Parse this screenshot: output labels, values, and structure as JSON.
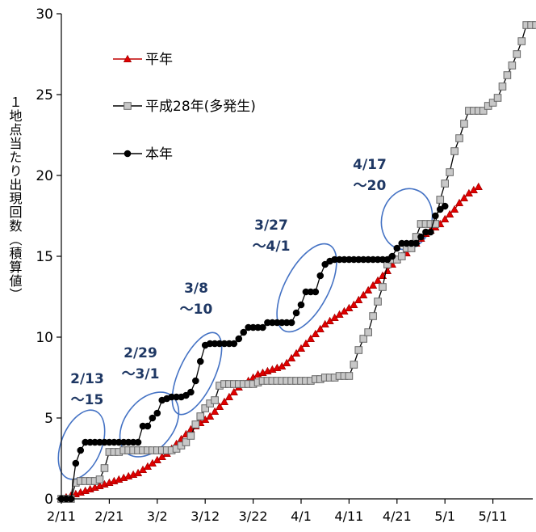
{
  "chart_data": {
    "type": "line",
    "xlabel": "",
    "ylabel": "１地点当たり出現回数（積算値）",
    "ylim": [
      0,
      30
    ],
    "yticks": [
      "0",
      "5",
      "10",
      "15",
      "20",
      "25",
      "30"
    ],
    "xticks": [
      "2/11",
      "2/21",
      "3/2",
      "3/12",
      "3/22",
      "4/1",
      "4/11",
      "4/21",
      "5/1",
      "5/11"
    ],
    "grid": false,
    "legend_position": "top-left",
    "legend": [
      "平年",
      "平成28年(多発生)",
      "本年"
    ],
    "series": [
      {
        "name": "平年",
        "color": "#e00000",
        "marker": "triangle",
        "points": [
          [
            0,
            0
          ],
          [
            1,
            0.1
          ],
          [
            2,
            0.2
          ],
          [
            3,
            0.3
          ],
          [
            4,
            0.4
          ],
          [
            5,
            0.5
          ],
          [
            6,
            0.6
          ],
          [
            7,
            0.7
          ],
          [
            8,
            0.8
          ],
          [
            9,
            0.9
          ],
          [
            10,
            1.0
          ],
          [
            11,
            1.1
          ],
          [
            12,
            1.2
          ],
          [
            13,
            1.3
          ],
          [
            14,
            1.4
          ],
          [
            15,
            1.5
          ],
          [
            16,
            1.6
          ],
          [
            17,
            1.8
          ],
          [
            18,
            2.0
          ],
          [
            19,
            2.2
          ],
          [
            20,
            2.4
          ],
          [
            21,
            2.6
          ],
          [
            22,
            2.8
          ],
          [
            23,
            3.1
          ],
          [
            24,
            3.4
          ],
          [
            25,
            3.7
          ],
          [
            26,
            4.0
          ],
          [
            27,
            4.3
          ],
          [
            28,
            4.5
          ],
          [
            29,
            4.7
          ],
          [
            30,
            4.9
          ],
          [
            31,
            5.1
          ],
          [
            32,
            5.4
          ],
          [
            33,
            5.7
          ],
          [
            34,
            6.0
          ],
          [
            35,
            6.3
          ],
          [
            36,
            6.6
          ],
          [
            37,
            6.9
          ],
          [
            38,
            7.1
          ],
          [
            39,
            7.3
          ],
          [
            40,
            7.5
          ],
          [
            41,
            7.7
          ],
          [
            42,
            7.8
          ],
          [
            43,
            7.9
          ],
          [
            44,
            8.0
          ],
          [
            45,
            8.1
          ],
          [
            46,
            8.2
          ],
          [
            47,
            8.4
          ],
          [
            48,
            8.7
          ],
          [
            49,
            9.0
          ],
          [
            50,
            9.3
          ],
          [
            51,
            9.6
          ],
          [
            52,
            9.9
          ],
          [
            53,
            10.2
          ],
          [
            54,
            10.5
          ],
          [
            55,
            10.8
          ],
          [
            56,
            11.0
          ],
          [
            57,
            11.2
          ],
          [
            58,
            11.4
          ],
          [
            59,
            11.6
          ],
          [
            60,
            11.8
          ],
          [
            61,
            12.0
          ],
          [
            62,
            12.3
          ],
          [
            63,
            12.6
          ],
          [
            64,
            12.9
          ],
          [
            65,
            13.2
          ],
          [
            66,
            13.5
          ],
          [
            67,
            13.8
          ],
          [
            68,
            14.1
          ],
          [
            69,
            14.5
          ],
          [
            70,
            14.8
          ],
          [
            71,
            15.0
          ],
          [
            72,
            15.2
          ],
          [
            73,
            15.5
          ],
          [
            74,
            15.8
          ],
          [
            75,
            16.1
          ],
          [
            76,
            16.4
          ],
          [
            77,
            16.6
          ],
          [
            78,
            16.8
          ],
          [
            79,
            17.0
          ],
          [
            80,
            17.3
          ],
          [
            81,
            17.6
          ],
          [
            82,
            17.9
          ],
          [
            83,
            18.3
          ],
          [
            84,
            18.6
          ],
          [
            85,
            18.9
          ],
          [
            86,
            19.1
          ],
          [
            87,
            19.3
          ]
        ]
      },
      {
        "name": "平成28年(多発生)",
        "color": "#888888",
        "marker": "square",
        "points": [
          [
            0,
            0
          ],
          [
            1,
            0
          ],
          [
            2,
            0
          ],
          [
            3,
            1
          ],
          [
            4,
            1.1
          ],
          [
            5,
            1.1
          ],
          [
            6,
            1.1
          ],
          [
            7,
            1.1
          ],
          [
            8,
            1.2
          ],
          [
            9,
            1.9
          ],
          [
            10,
            2.9
          ],
          [
            11,
            2.9
          ],
          [
            12,
            2.9
          ],
          [
            13,
            3.0
          ],
          [
            14,
            3.0
          ],
          [
            15,
            3.0
          ],
          [
            16,
            3.0
          ],
          [
            17,
            3.0
          ],
          [
            18,
            3.0
          ],
          [
            19,
            3.0
          ],
          [
            20,
            3.0
          ],
          [
            21,
            3.0
          ],
          [
            22,
            3.0
          ],
          [
            23,
            3.0
          ],
          [
            24,
            3.1
          ],
          [
            25,
            3.3
          ],
          [
            26,
            3.5
          ],
          [
            27,
            3.9
          ],
          [
            28,
            4.6
          ],
          [
            29,
            5.1
          ],
          [
            30,
            5.6
          ],
          [
            31,
            5.9
          ],
          [
            32,
            6.1
          ],
          [
            33,
            7.0
          ],
          [
            34,
            7.1
          ],
          [
            35,
            7.1
          ],
          [
            36,
            7.1
          ],
          [
            37,
            7.1
          ],
          [
            38,
            7.1
          ],
          [
            39,
            7.1
          ],
          [
            40,
            7.1
          ],
          [
            41,
            7.2
          ],
          [
            42,
            7.3
          ],
          [
            43,
            7.3
          ],
          [
            44,
            7.3
          ],
          [
            45,
            7.3
          ],
          [
            46,
            7.3
          ],
          [
            47,
            7.3
          ],
          [
            48,
            7.3
          ],
          [
            49,
            7.3
          ],
          [
            50,
            7.3
          ],
          [
            51,
            7.3
          ],
          [
            52,
            7.3
          ],
          [
            53,
            7.4
          ],
          [
            54,
            7.4
          ],
          [
            55,
            7.5
          ],
          [
            56,
            7.5
          ],
          [
            57,
            7.5
          ],
          [
            58,
            7.6
          ],
          [
            59,
            7.6
          ],
          [
            60,
            7.6
          ],
          [
            61,
            8.3
          ],
          [
            62,
            9.2
          ],
          [
            63,
            9.9
          ],
          [
            64,
            10.3
          ],
          [
            65,
            11.3
          ],
          [
            66,
            12.2
          ],
          [
            67,
            13.1
          ],
          [
            68,
            14.5
          ],
          [
            69,
            14.8
          ],
          [
            70,
            14.8
          ],
          [
            71,
            15.0
          ],
          [
            72,
            15.5
          ],
          [
            73,
            15.5
          ],
          [
            74,
            16.2
          ],
          [
            75,
            17.0
          ],
          [
            76,
            17.0
          ],
          [
            77,
            17.0
          ],
          [
            78,
            17.0
          ],
          [
            79,
            18.5
          ],
          [
            80,
            19.5
          ],
          [
            81,
            20.2
          ],
          [
            82,
            21.5
          ],
          [
            83,
            22.3
          ],
          [
            84,
            23.2
          ],
          [
            85,
            24.0
          ],
          [
            86,
            24.0
          ],
          [
            87,
            24.0
          ],
          [
            88,
            24.0
          ],
          [
            89,
            24.3
          ],
          [
            90,
            24.5
          ],
          [
            91,
            24.8
          ],
          [
            92,
            25.5
          ],
          [
            93,
            26.2
          ],
          [
            94,
            26.8
          ],
          [
            95,
            27.5
          ],
          [
            96,
            28.3
          ],
          [
            97,
            29.3
          ],
          [
            98,
            29.3
          ],
          [
            99,
            29.3
          ],
          [
            100,
            29.3
          ]
        ]
      },
      {
        "name": "本年",
        "color": "#000000",
        "marker": "circle",
        "points": [
          [
            0,
            0
          ],
          [
            1,
            0
          ],
          [
            2,
            0
          ],
          [
            3,
            2.2
          ],
          [
            4,
            3.0
          ],
          [
            5,
            3.5
          ],
          [
            6,
            3.5
          ],
          [
            7,
            3.5
          ],
          [
            8,
            3.5
          ],
          [
            9,
            3.5
          ],
          [
            10,
            3.5
          ],
          [
            11,
            3.5
          ],
          [
            12,
            3.5
          ],
          [
            13,
            3.5
          ],
          [
            14,
            3.5
          ],
          [
            15,
            3.5
          ],
          [
            16,
            3.5
          ],
          [
            17,
            4.5
          ],
          [
            18,
            4.5
          ],
          [
            19,
            5.0
          ],
          [
            20,
            5.3
          ],
          [
            21,
            6.1
          ],
          [
            22,
            6.2
          ],
          [
            23,
            6.3
          ],
          [
            24,
            6.3
          ],
          [
            25,
            6.3
          ],
          [
            26,
            6.4
          ],
          [
            27,
            6.6
          ],
          [
            28,
            7.3
          ],
          [
            29,
            8.5
          ],
          [
            30,
            9.5
          ],
          [
            31,
            9.6
          ],
          [
            32,
            9.6
          ],
          [
            33,
            9.6
          ],
          [
            34,
            9.6
          ],
          [
            35,
            9.6
          ],
          [
            36,
            9.6
          ],
          [
            37,
            9.9
          ],
          [
            38,
            10.3
          ],
          [
            39,
            10.6
          ],
          [
            40,
            10.6
          ],
          [
            41,
            10.6
          ],
          [
            42,
            10.6
          ],
          [
            43,
            10.9
          ],
          [
            44,
            10.9
          ],
          [
            45,
            10.9
          ],
          [
            46,
            10.9
          ],
          [
            47,
            10.9
          ],
          [
            48,
            10.9
          ],
          [
            49,
            11.5
          ],
          [
            50,
            12.0
          ],
          [
            51,
            12.8
          ],
          [
            52,
            12.8
          ],
          [
            53,
            12.8
          ],
          [
            54,
            13.8
          ],
          [
            55,
            14.5
          ],
          [
            56,
            14.7
          ],
          [
            57,
            14.8
          ],
          [
            58,
            14.8
          ],
          [
            59,
            14.8
          ],
          [
            60,
            14.8
          ],
          [
            61,
            14.8
          ],
          [
            62,
            14.8
          ],
          [
            63,
            14.8
          ],
          [
            64,
            14.8
          ],
          [
            65,
            14.8
          ],
          [
            66,
            14.8
          ],
          [
            67,
            14.8
          ],
          [
            68,
            14.8
          ],
          [
            69,
            15.0
          ],
          [
            70,
            15.5
          ],
          [
            71,
            15.8
          ],
          [
            72,
            15.8
          ],
          [
            73,
            15.8
          ],
          [
            74,
            15.8
          ],
          [
            75,
            16.2
          ],
          [
            76,
            16.5
          ],
          [
            77,
            16.5
          ],
          [
            78,
            17.5
          ],
          [
            79,
            17.9
          ],
          [
            80,
            18.1
          ]
        ]
      }
    ],
    "annotations": [
      {
        "lines": [
          "2/13",
          "～15"
        ]
      },
      {
        "lines": [
          "2/29",
          "～3/1"
        ]
      },
      {
        "lines": [
          "3/8",
          "～10"
        ]
      },
      {
        "lines": [
          "3/27",
          "～4/1"
        ]
      },
      {
        "lines": [
          "4/17",
          "～20"
        ]
      }
    ],
    "ellipse_color": "#4472c4",
    "annotation_color": "#1f3864"
  }
}
